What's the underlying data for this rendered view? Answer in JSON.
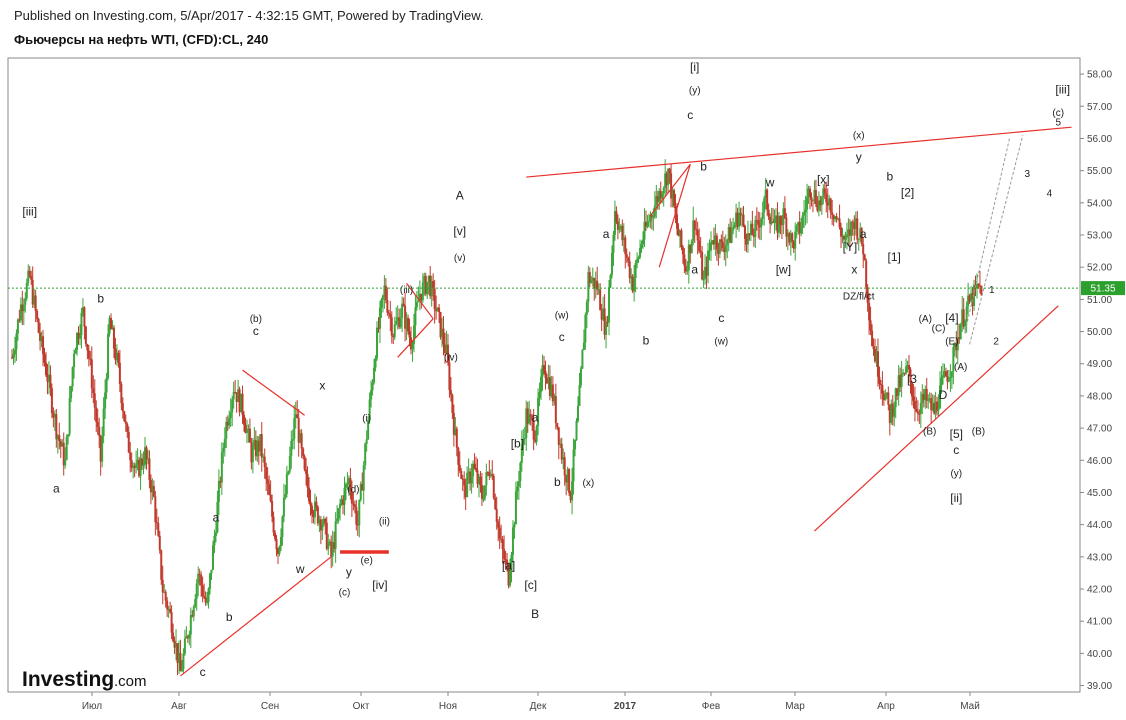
{
  "header": {
    "published": "Published on Investing.com, 5/Apr/2017 - 4:32:15 GMT, Powered by TradingView.",
    "symbol": "Фьючерсы на нефть WTI, (CFD):CL, 240"
  },
  "logo": {
    "brand": "Investing",
    "suffix": ".com"
  },
  "chart_data": {
    "type": "candlestick",
    "ylim": [
      38.8,
      58.5
    ],
    "y_ticks": [
      "39.00",
      "40.00",
      "41.00",
      "42.00",
      "43.00",
      "44.00",
      "45.00",
      "46.00",
      "47.00",
      "48.00",
      "49.00",
      "50.00",
      "51.00",
      "52.00",
      "53.00",
      "54.00",
      "55.00",
      "56.00",
      "57.00",
      "58.00"
    ],
    "x_labels": [
      "Июл",
      "Авг",
      "Сен",
      "Окт",
      "Ноя",
      "Дек",
      "2017",
      "Фев",
      "Мар",
      "Апр",
      "Май"
    ],
    "last_price": "51.35",
    "colors": {
      "up": "#3aa53a",
      "down": "#c0392b",
      "trendline": "#e8302a",
      "price_line": "#2ca02c",
      "projection": "#999999"
    },
    "price_path": [
      [
        0,
        49.2
      ],
      [
        2,
        50.8
      ],
      [
        4,
        51.7
      ],
      [
        6,
        50.0
      ],
      [
        8,
        48.6
      ],
      [
        10,
        47.0
      ],
      [
        12,
        45.9
      ],
      [
        14,
        49.5
      ],
      [
        16,
        50.6
      ],
      [
        18,
        48.5
      ],
      [
        20,
        46.0
      ],
      [
        22,
        50.3
      ],
      [
        24,
        48.8
      ],
      [
        26,
        46.6
      ],
      [
        28,
        45.6
      ],
      [
        30,
        46.2
      ],
      [
        32,
        44.8
      ],
      [
        34,
        42.0
      ],
      [
        36,
        41.0
      ],
      [
        38,
        39.4
      ],
      [
        40,
        40.9
      ],
      [
        42,
        42.5
      ],
      [
        44,
        41.4
      ],
      [
        46,
        44.1
      ],
      [
        48,
        46.9
      ],
      [
        50,
        48.3
      ],
      [
        52,
        47.6
      ],
      [
        54,
        46.2
      ],
      [
        56,
        46.5
      ],
      [
        58,
        44.8
      ],
      [
        60,
        43.2
      ],
      [
        62,
        45.3
      ],
      [
        64,
        47.5
      ],
      [
        66,
        45.5
      ],
      [
        68,
        44.5
      ],
      [
        70,
        44.1
      ],
      [
        72,
        43.0
      ],
      [
        74,
        44.6
      ],
      [
        76,
        45.4
      ],
      [
        78,
        44.0
      ],
      [
        80,
        46.8
      ],
      [
        82,
        49.5
      ],
      [
        84,
        51.3
      ],
      [
        86,
        50.0
      ],
      [
        88,
        50.7
      ],
      [
        90,
        49.7
      ],
      [
        92,
        51.2
      ],
      [
        94,
        51.6
      ],
      [
        96,
        50.5
      ],
      [
        98,
        49.3
      ],
      [
        100,
        46.7
      ],
      [
        102,
        45.0
      ],
      [
        104,
        45.8
      ],
      [
        106,
        44.9
      ],
      [
        108,
        45.9
      ],
      [
        110,
        43.5
      ],
      [
        112,
        42.4
      ],
      [
        114,
        45.2
      ],
      [
        116,
        47.4
      ],
      [
        118,
        46.9
      ],
      [
        120,
        49.0
      ],
      [
        122,
        48.0
      ],
      [
        124,
        46.2
      ],
      [
        126,
        45.0
      ],
      [
        128,
        48.0
      ],
      [
        130,
        51.7
      ],
      [
        132,
        51.4
      ],
      [
        134,
        50.0
      ],
      [
        136,
        53.8
      ],
      [
        138,
        52.7
      ],
      [
        140,
        51.5
      ],
      [
        142,
        52.8
      ],
      [
        144,
        53.6
      ],
      [
        146,
        54.3
      ],
      [
        148,
        55.0
      ],
      [
        150,
        53.2
      ],
      [
        152,
        52.0
      ],
      [
        154,
        53.5
      ],
      [
        156,
        51.5
      ],
      [
        158,
        53.0
      ],
      [
        160,
        52.6
      ],
      [
        162,
        53.0
      ],
      [
        164,
        53.7
      ],
      [
        166,
        52.9
      ],
      [
        168,
        53.2
      ],
      [
        170,
        54.1
      ],
      [
        172,
        53.2
      ],
      [
        174,
        53.6
      ],
      [
        176,
        52.7
      ],
      [
        178,
        53.3
      ],
      [
        180,
        54.5
      ],
      [
        182,
        54.0
      ],
      [
        184,
        54.2
      ],
      [
        186,
        53.5
      ],
      [
        188,
        52.7
      ],
      [
        190,
        53.5
      ],
      [
        192,
        52.6
      ],
      [
        194,
        49.7
      ],
      [
        196,
        48.5
      ],
      [
        198,
        47.4
      ],
      [
        200,
        48.3
      ],
      [
        202,
        48.8
      ],
      [
        204,
        47.6
      ],
      [
        206,
        47.9
      ],
      [
        208,
        47.5
      ],
      [
        210,
        48.4
      ],
      [
        212,
        49.0
      ],
      [
        214,
        50.3
      ],
      [
        216,
        50.9
      ],
      [
        218,
        51.35
      ]
    ],
    "trendlines": [
      {
        "from": [
          38,
          39.3
        ],
        "to": [
          72,
          43.0
        ]
      },
      {
        "from": [
          52,
          48.8
        ],
        "to": [
          66,
          47.4
        ]
      },
      {
        "from": [
          116,
          54.8
        ],
        "to": [
          239,
          56.35
        ]
      },
      {
        "from": [
          181,
          43.8
        ],
        "to": [
          236,
          50.8
        ]
      },
      {
        "from": [
          144,
          53.6
        ],
        "to": [
          153,
          55.2
        ]
      },
      {
        "from": [
          146,
          52.0
        ],
        "to": [
          153,
          55.2
        ]
      },
      {
        "from": [
          87,
          49.2
        ],
        "to": [
          95,
          50.4
        ]
      },
      {
        "from": [
          89,
          51.5
        ],
        "to": [
          95,
          50.4
        ]
      }
    ],
    "support_bar": {
      "from": [
        74,
        43.15
      ],
      "to": [
        85,
        43.15
      ]
    },
    "projections": [
      {
        "from": [
          215,
          50.0
        ],
        "to": [
          225,
          56.0
        ]
      },
      {
        "from": [
          216,
          49.6
        ],
        "to": [
          228,
          56.1
        ]
      }
    ],
    "wave_labels": [
      {
        "text": "[iii]",
        "at": [
          4,
          53.6
        ]
      },
      {
        "text": "b",
        "at": [
          20,
          50.9
        ]
      },
      {
        "text": "a",
        "at": [
          10,
          45.0
        ]
      },
      {
        "text": "a",
        "at": [
          46,
          44.1
        ]
      },
      {
        "text": "b",
        "at": [
          49,
          41.0
        ]
      },
      {
        "text": "c",
        "at": [
          43,
          39.3
        ]
      },
      {
        "text": "(b)",
        "at": [
          55,
          50.3
        ]
      },
      {
        "text": "c",
        "at": [
          55,
          49.9
        ]
      },
      {
        "text": "w",
        "at": [
          65,
          42.5
        ]
      },
      {
        "text": "x",
        "at": [
          70,
          48.2
        ]
      },
      {
        "text": "y",
        "at": [
          76,
          42.4
        ]
      },
      {
        "text": "(c)",
        "at": [
          75,
          41.8
        ]
      },
      {
        "text": "(d)",
        "at": [
          77,
          45.0
        ]
      },
      {
        "text": "(e)",
        "at": [
          80,
          42.8
        ]
      },
      {
        "text": "[iv]",
        "at": [
          83,
          42.0
        ]
      },
      {
        "text": "(ii)",
        "at": [
          84,
          44.0
        ]
      },
      {
        "text": "(i)",
        "at": [
          80,
          47.2
        ]
      },
      {
        "text": "(iii)",
        "at": [
          89,
          51.2
        ]
      },
      {
        "text": "(iv)",
        "at": [
          99,
          49.1
        ]
      },
      {
        "text": "(v)",
        "at": [
          101,
          52.2
        ]
      },
      {
        "text": "[v]",
        "at": [
          101,
          53.0
        ]
      },
      {
        "text": "A",
        "at": [
          101,
          54.1
        ]
      },
      {
        "text": "[b]",
        "at": [
          114,
          46.4
        ]
      },
      {
        "text": "[a]",
        "at": [
          112,
          42.6
        ]
      },
      {
        "text": "[c]",
        "at": [
          117,
          42.0
        ]
      },
      {
        "text": "B",
        "at": [
          118,
          41.1
        ]
      },
      {
        "text": "a",
        "at": [
          118,
          47.2
        ]
      },
      {
        "text": "b",
        "at": [
          123,
          45.2
        ]
      },
      {
        "text": "c",
        "at": [
          124,
          49.7
        ]
      },
      {
        "text": "(w)",
        "at": [
          124,
          50.4
        ]
      },
      {
        "text": "(x)",
        "at": [
          130,
          45.2
        ]
      },
      {
        "text": "a",
        "at": [
          134,
          52.9
        ]
      },
      {
        "text": "b",
        "at": [
          143,
          49.6
        ]
      },
      {
        "text": "a",
        "at": [
          154,
          51.8
        ]
      },
      {
        "text": "b",
        "at": [
          156,
          55.0
        ]
      },
      {
        "text": "c",
        "at": [
          153,
          56.6
        ]
      },
      {
        "text": "(y)",
        "at": [
          154,
          57.4
        ]
      },
      {
        "text": "[i]",
        "at": [
          154,
          58.1
        ]
      },
      {
        "text": "c",
        "at": [
          160,
          50.3
        ]
      },
      {
        "text": "(w)",
        "at": [
          160,
          49.6
        ]
      },
      {
        "text": "w",
        "at": [
          171,
          54.5
        ]
      },
      {
        "text": "[w]",
        "at": [
          174,
          51.8
        ]
      },
      {
        "text": "[x]",
        "at": [
          183,
          54.6
        ]
      },
      {
        "text": "[Y]",
        "at": [
          189,
          52.5
        ]
      },
      {
        "text": "a",
        "at": [
          192,
          52.9
        ]
      },
      {
        "text": "x",
        "at": [
          190,
          51.8
        ]
      },
      {
        "text": "DZ/fl/ct",
        "at": [
          191,
          51.0
        ]
      },
      {
        "text": "(x)",
        "at": [
          191,
          56.0
        ]
      },
      {
        "text": "y",
        "at": [
          191,
          55.3
        ]
      },
      {
        "text": "b",
        "at": [
          198,
          54.7
        ]
      },
      {
        "text": "[2]",
        "at": [
          202,
          54.2
        ]
      },
      {
        "text": "[1]",
        "at": [
          199,
          52.2
        ]
      },
      {
        "text": "(A)",
        "at": [
          206,
          50.3
        ]
      },
      {
        "text": "(C)",
        "at": [
          209,
          50.0
        ]
      },
      {
        "text": "[4]",
        "at": [
          212,
          50.3
        ]
      },
      {
        "text": "(E)",
        "at": [
          212,
          49.6
        ]
      },
      {
        "text": "[3",
        "at": [
          203,
          48.4
        ]
      },
      {
        "text": "(A)",
        "at": [
          214,
          48.8
        ]
      },
      {
        "text": "D",
        "at": [
          210,
          47.9
        ]
      },
      {
        "text": "(B)",
        "at": [
          207,
          46.8
        ]
      },
      {
        "text": "[5]",
        "at": [
          213,
          46.7
        ]
      },
      {
        "text": "(B)",
        "at": [
          218,
          46.8
        ]
      },
      {
        "text": "c",
        "at": [
          213,
          46.2
        ]
      },
      {
        "text": "(y)",
        "at": [
          213,
          45.5
        ]
      },
      {
        "text": "[ii]",
        "at": [
          213,
          44.7
        ]
      },
      {
        "text": "1",
        "at": [
          221,
          51.2
        ]
      },
      {
        "text": "2",
        "at": [
          222,
          49.6
        ]
      },
      {
        "text": "3",
        "at": [
          229,
          54.8
        ]
      },
      {
        "text": "4",
        "at": [
          234,
          54.2
        ]
      },
      {
        "text": "5",
        "at": [
          236,
          56.4
        ]
      },
      {
        "text": "(c)",
        "at": [
          236,
          56.7
        ]
      },
      {
        "text": "[iii]",
        "at": [
          237,
          57.4
        ]
      }
    ]
  }
}
